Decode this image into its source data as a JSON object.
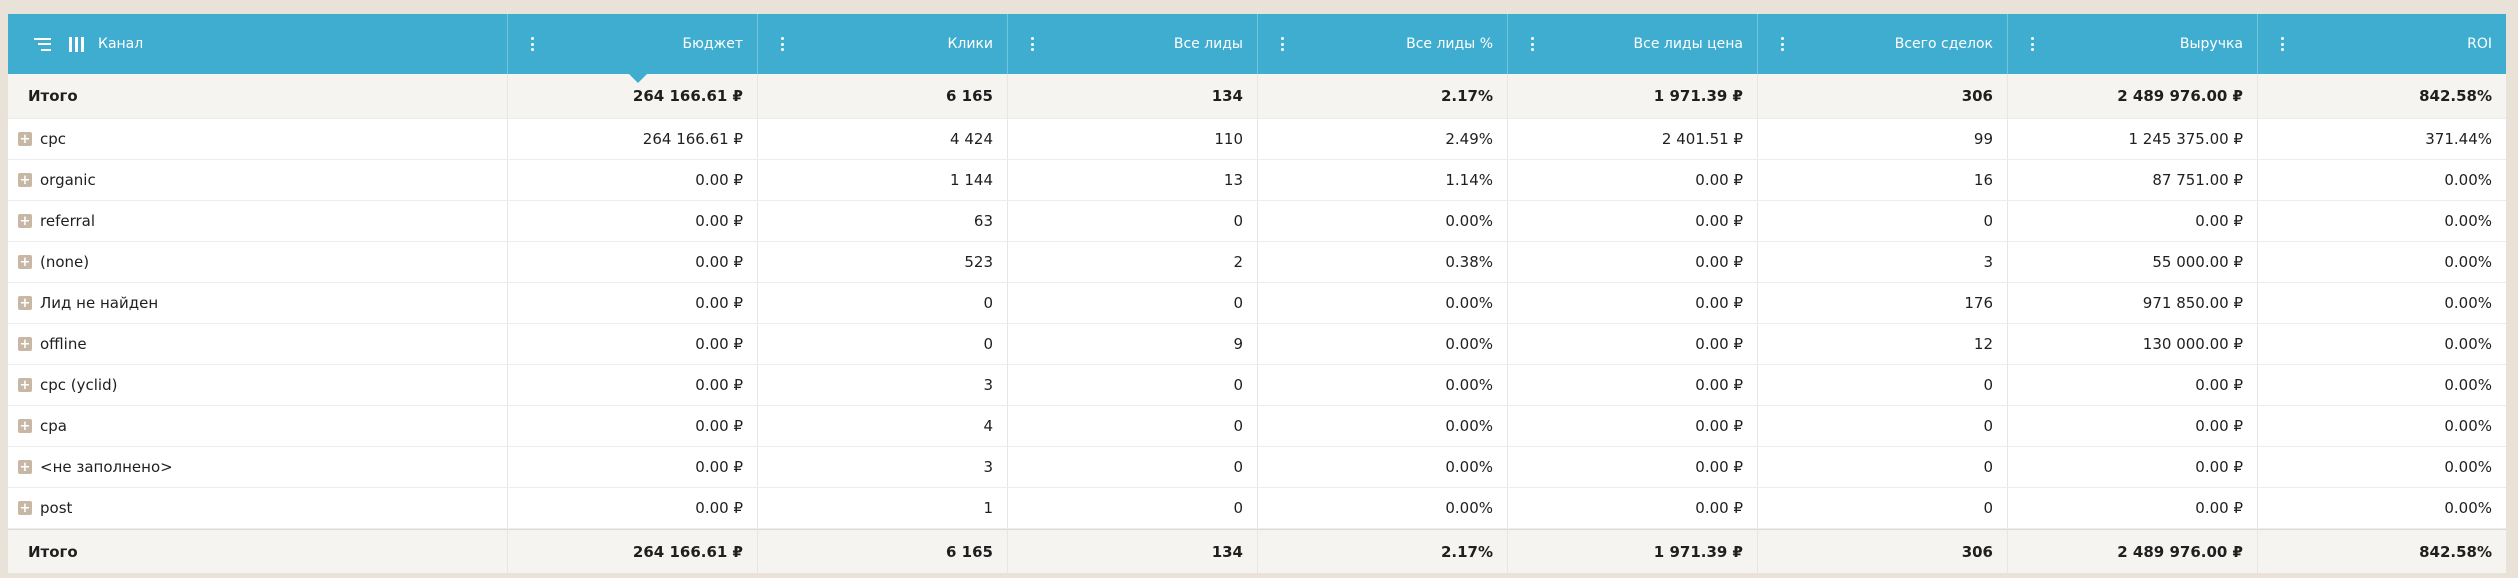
{
  "header": {
    "channel": "Канал",
    "columns": [
      "Бюджет",
      "Клики",
      "Все лиды",
      "Все лиды %",
      "Все лиды цена",
      "Всего сделок",
      "Выручка",
      "ROI"
    ]
  },
  "total_top": {
    "label": "Итого",
    "values": [
      "264 166.61 ₽",
      "6 165",
      "134",
      "2.17%",
      "1 971.39 ₽",
      "306",
      "2 489 976.00 ₽",
      "842.58%"
    ]
  },
  "rows": [
    {
      "label": "cpc",
      "values": [
        "264 166.61 ₽",
        "4 424",
        "110",
        "2.49%",
        "2 401.51 ₽",
        "99",
        "1 245 375.00 ₽",
        "371.44%"
      ]
    },
    {
      "label": "organic",
      "values": [
        "0.00 ₽",
        "1 144",
        "13",
        "1.14%",
        "0.00 ₽",
        "16",
        "87 751.00 ₽",
        "0.00%"
      ]
    },
    {
      "label": "referral",
      "values": [
        "0.00 ₽",
        "63",
        "0",
        "0.00%",
        "0.00 ₽",
        "0",
        "0.00 ₽",
        "0.00%"
      ]
    },
    {
      "label": "(none)",
      "values": [
        "0.00 ₽",
        "523",
        "2",
        "0.38%",
        "0.00 ₽",
        "3",
        "55 000.00 ₽",
        "0.00%"
      ]
    },
    {
      "label": "Лид не найден",
      "values": [
        "0.00 ₽",
        "0",
        "0",
        "0.00%",
        "0.00 ₽",
        "176",
        "971 850.00 ₽",
        "0.00%"
      ]
    },
    {
      "label": "offline",
      "values": [
        "0.00 ₽",
        "0",
        "9",
        "0.00%",
        "0.00 ₽",
        "12",
        "130 000.00 ₽",
        "0.00%"
      ]
    },
    {
      "label": "cpc (yclid)",
      "values": [
        "0.00 ₽",
        "3",
        "0",
        "0.00%",
        "0.00 ₽",
        "0",
        "0.00 ₽",
        "0.00%"
      ]
    },
    {
      "label": "cpa",
      "values": [
        "0.00 ₽",
        "4",
        "0",
        "0.00%",
        "0.00 ₽",
        "0",
        "0.00 ₽",
        "0.00%"
      ]
    },
    {
      "label": "<не заполнено>",
      "values": [
        "0.00 ₽",
        "3",
        "0",
        "0.00%",
        "0.00 ₽",
        "0",
        "0.00 ₽",
        "0.00%"
      ]
    },
    {
      "label": "post",
      "values": [
        "0.00 ₽",
        "1",
        "0",
        "0.00%",
        "0.00 ₽",
        "0",
        "0.00 ₽",
        "0.00%"
      ]
    }
  ],
  "total_bottom": {
    "label": "Итого",
    "values": [
      "264 166.61 ₽",
      "6 165",
      "134",
      "2.17%",
      "1 971.39 ₽",
      "306",
      "2 489 976.00 ₽",
      "842.58%"
    ]
  },
  "icons": {
    "expand": "plus-icon",
    "column_menu": "kebab-icon",
    "group": "list-icon",
    "columns": "columns-icon"
  },
  "colors": {
    "header": "#3fadd0",
    "expand": "#c9b7a5",
    "total_bg": "#f6f4f1"
  }
}
